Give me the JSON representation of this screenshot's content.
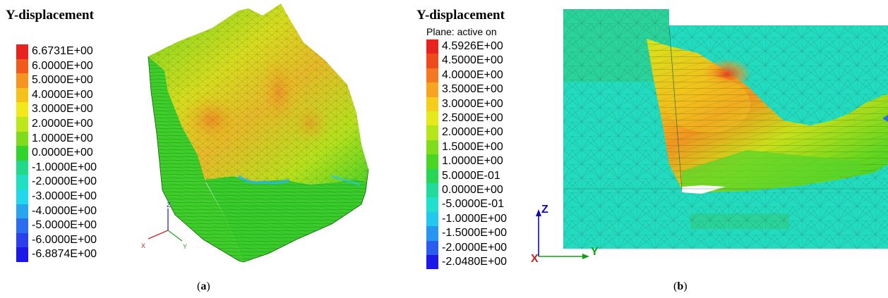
{
  "panel_a": {
    "legend_title": "Y-displacement",
    "legend_items": [
      {
        "label": "6.6731E+00",
        "color": "#e8221c"
      },
      {
        "label": "6.0000E+00",
        "color": "#f25a1d"
      },
      {
        "label": "5.0000E+00",
        "color": "#f79420"
      },
      {
        "label": "4.0000E+00",
        "color": "#f6c21a"
      },
      {
        "label": "3.0000E+00",
        "color": "#f2e81a"
      },
      {
        "label": "2.0000E+00",
        "color": "#bde719"
      },
      {
        "label": "1.0000E+00",
        "color": "#7fdc1c"
      },
      {
        "label": "0.0000E+00",
        "color": "#30d42a"
      },
      {
        "label": "-1.0000E+00",
        "color": "#20d98a"
      },
      {
        "label": "-2.0000E+00",
        "color": "#1fe0c4"
      },
      {
        "label": "-3.0000E+00",
        "color": "#22d8ec"
      },
      {
        "label": "-4.0000E+00",
        "color": "#27a6ef"
      },
      {
        "label": "-5.0000E+00",
        "color": "#2a6ef0"
      },
      {
        "label": "-6.0000E+00",
        "color": "#2a40ee"
      },
      {
        "label": "-6.8874E+00",
        "color": "#1c18e8"
      }
    ],
    "axis": {
      "z": "Z",
      "x": "X",
      "y": "Y"
    },
    "caption_letter": "a"
  },
  "panel_b": {
    "legend_title": "Y-displacement",
    "legend_subtitle": "Plane: active on",
    "legend_items": [
      {
        "label": "4.5926E+00",
        "color": "#e8221c"
      },
      {
        "label": "4.5000E+00",
        "color": "#ee4a1c"
      },
      {
        "label": "4.0000E+00",
        "color": "#f5771e"
      },
      {
        "label": "3.5000E+00",
        "color": "#f7a420"
      },
      {
        "label": "3.0000E+00",
        "color": "#f5cd1a"
      },
      {
        "label": "2.5000E+00",
        "color": "#e5ea1a"
      },
      {
        "label": "2.0000E+00",
        "color": "#b4e61a"
      },
      {
        "label": "1.5000E+00",
        "color": "#80dd1c"
      },
      {
        "label": "1.0000E+00",
        "color": "#49d622"
      },
      {
        "label": "5.0000E-01",
        "color": "#28d656"
      },
      {
        "label": "0.0000E+00",
        "color": "#20dc9c"
      },
      {
        "label": "-5.0000E-01",
        "color": "#1fe0cc"
      },
      {
        "label": "-1.0000E+00",
        "color": "#22c8ee"
      },
      {
        "label": "-1.5000E+00",
        "color": "#2796f0"
      },
      {
        "label": "-2.0000E+00",
        "color": "#2a5cf0"
      },
      {
        "label": "-2.0480E+00",
        "color": "#1c18e8"
      }
    ],
    "axis": {
      "z": "Z",
      "x": "X",
      "y": "Y"
    },
    "caption_letter": "b"
  }
}
